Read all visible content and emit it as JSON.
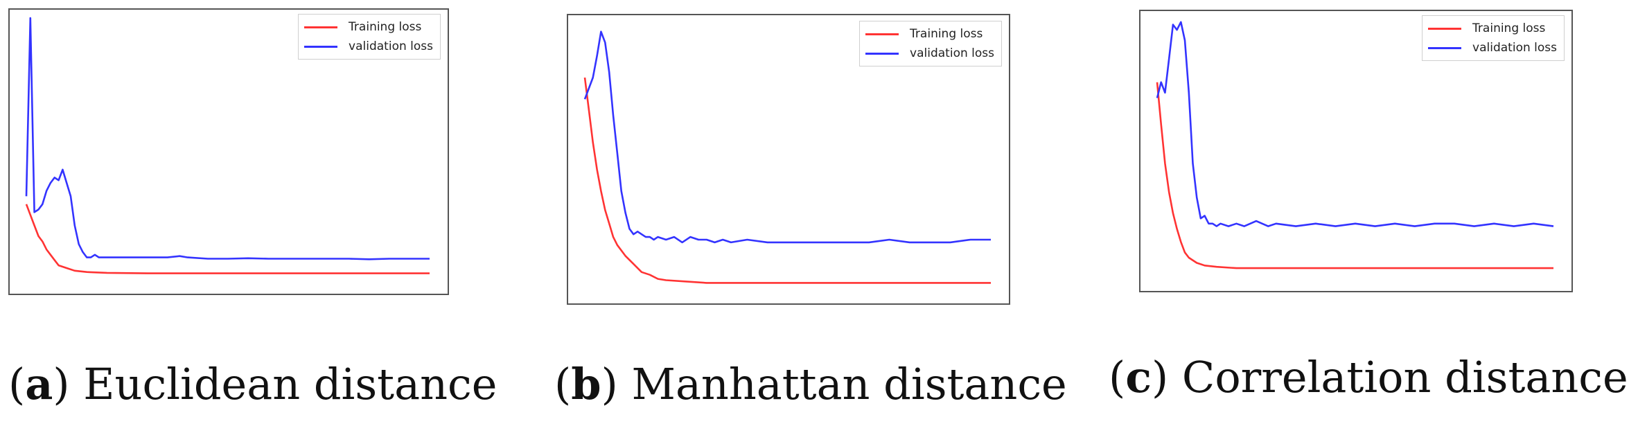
{
  "chart_data": [
    {
      "type": "line",
      "caption_letter": "a",
      "caption_text": "Euclidean distance",
      "legend": [
        "Training loss",
        "validation loss"
      ],
      "legend_position": "top-right",
      "grid": false,
      "ticks_shown": false,
      "xlim": [
        0,
        100
      ],
      "ylim": [
        0,
        1
      ],
      "series": [
        {
          "name": "Training loss",
          "color": "#ff3333",
          "x": [
            0,
            1,
            2,
            3,
            4,
            5,
            6,
            7,
            8,
            10,
            12,
            15,
            20,
            30,
            40,
            50,
            60,
            70,
            80,
            90,
            100
          ],
          "y": [
            0.3,
            0.26,
            0.22,
            0.18,
            0.16,
            0.13,
            0.11,
            0.09,
            0.07,
            0.06,
            0.05,
            0.045,
            0.042,
            0.04,
            0.04,
            0.04,
            0.04,
            0.04,
            0.04,
            0.04,
            0.04
          ]
        },
        {
          "name": "validation loss",
          "color": "#3333ff",
          "x": [
            0,
            1,
            2,
            3,
            4,
            5,
            6,
            7,
            8,
            9,
            10,
            11,
            12,
            13,
            14,
            15,
            16,
            17,
            18,
            19,
            20,
            22,
            25,
            30,
            35,
            38,
            40,
            45,
            50,
            55,
            60,
            65,
            70,
            75,
            80,
            85,
            90,
            95,
            100
          ],
          "y": [
            0.33,
            1.0,
            0.27,
            0.28,
            0.3,
            0.35,
            0.38,
            0.4,
            0.39,
            0.43,
            0.38,
            0.33,
            0.22,
            0.15,
            0.12,
            0.1,
            0.1,
            0.11,
            0.1,
            0.1,
            0.1,
            0.1,
            0.1,
            0.1,
            0.1,
            0.105,
            0.1,
            0.095,
            0.095,
            0.097,
            0.095,
            0.095,
            0.095,
            0.095,
            0.095,
            0.093,
            0.095,
            0.095,
            0.095
          ]
        }
      ]
    },
    {
      "type": "line",
      "caption_letter": "b",
      "caption_text": "Manhattan distance",
      "legend": [
        "Training loss",
        "validation loss"
      ],
      "legend_position": "top-right",
      "grid": false,
      "ticks_shown": false,
      "xlim": [
        0,
        100
      ],
      "ylim": [
        0,
        1
      ],
      "series": [
        {
          "name": "Training loss",
          "color": "#ff3333",
          "x": [
            0,
            1,
            2,
            3,
            4,
            5,
            6,
            7,
            8,
            10,
            12,
            14,
            16,
            18,
            20,
            25,
            30,
            40,
            50,
            60,
            70,
            80,
            90,
            100
          ],
          "y": [
            0.8,
            0.68,
            0.56,
            0.46,
            0.38,
            0.31,
            0.26,
            0.21,
            0.18,
            0.14,
            0.11,
            0.08,
            0.07,
            0.055,
            0.05,
            0.045,
            0.04,
            0.04,
            0.04,
            0.04,
            0.04,
            0.04,
            0.04,
            0.04
          ]
        },
        {
          "name": "validation loss",
          "color": "#3333ff",
          "x": [
            0,
            2,
            3,
            4,
            5,
            6,
            7,
            8,
            9,
            10,
            11,
            12,
            13,
            14,
            15,
            16,
            17,
            18,
            20,
            22,
            24,
            26,
            28,
            30,
            32,
            34,
            36,
            40,
            45,
            50,
            55,
            60,
            65,
            70,
            75,
            80,
            85,
            90,
            95,
            100
          ],
          "y": [
            0.72,
            0.8,
            0.88,
            0.97,
            0.93,
            0.82,
            0.66,
            0.52,
            0.38,
            0.3,
            0.24,
            0.22,
            0.23,
            0.22,
            0.21,
            0.21,
            0.2,
            0.21,
            0.2,
            0.21,
            0.19,
            0.21,
            0.2,
            0.2,
            0.19,
            0.2,
            0.19,
            0.2,
            0.19,
            0.19,
            0.19,
            0.19,
            0.19,
            0.19,
            0.2,
            0.19,
            0.19,
            0.19,
            0.2,
            0.2
          ]
        }
      ]
    },
    {
      "type": "line",
      "caption_letter": "c",
      "caption_text": "Correlation distance",
      "legend": [
        "Training loss",
        "validation loss"
      ],
      "legend_position": "top-right",
      "grid": false,
      "ticks_shown": false,
      "xlim": [
        0,
        100
      ],
      "ylim": [
        0,
        1
      ],
      "series": [
        {
          "name": "Training loss",
          "color": "#ff3333",
          "x": [
            0,
            1,
            2,
            3,
            4,
            5,
            6,
            7,
            8,
            10,
            12,
            15,
            20,
            30,
            40,
            50,
            60,
            70,
            80,
            90,
            100
          ],
          "y": [
            0.76,
            0.6,
            0.45,
            0.34,
            0.26,
            0.2,
            0.15,
            0.11,
            0.09,
            0.07,
            0.06,
            0.055,
            0.05,
            0.05,
            0.05,
            0.05,
            0.05,
            0.05,
            0.05,
            0.05,
            0.05
          ]
        },
        {
          "name": "validation loss",
          "color": "#3333ff",
          "x": [
            0,
            1,
            2,
            3,
            4,
            5,
            6,
            7,
            8,
            9,
            10,
            11,
            12,
            13,
            14,
            15,
            16,
            18,
            20,
            22,
            25,
            28,
            30,
            35,
            40,
            45,
            50,
            55,
            60,
            65,
            70,
            75,
            80,
            85,
            90,
            95,
            100
          ],
          "y": [
            0.7,
            0.76,
            0.72,
            0.85,
            0.98,
            0.96,
            0.99,
            0.92,
            0.72,
            0.45,
            0.32,
            0.24,
            0.25,
            0.22,
            0.22,
            0.21,
            0.22,
            0.21,
            0.22,
            0.21,
            0.23,
            0.21,
            0.22,
            0.21,
            0.22,
            0.21,
            0.22,
            0.21,
            0.22,
            0.21,
            0.22,
            0.22,
            0.21,
            0.22,
            0.21,
            0.22,
            0.21
          ]
        }
      ]
    }
  ]
}
